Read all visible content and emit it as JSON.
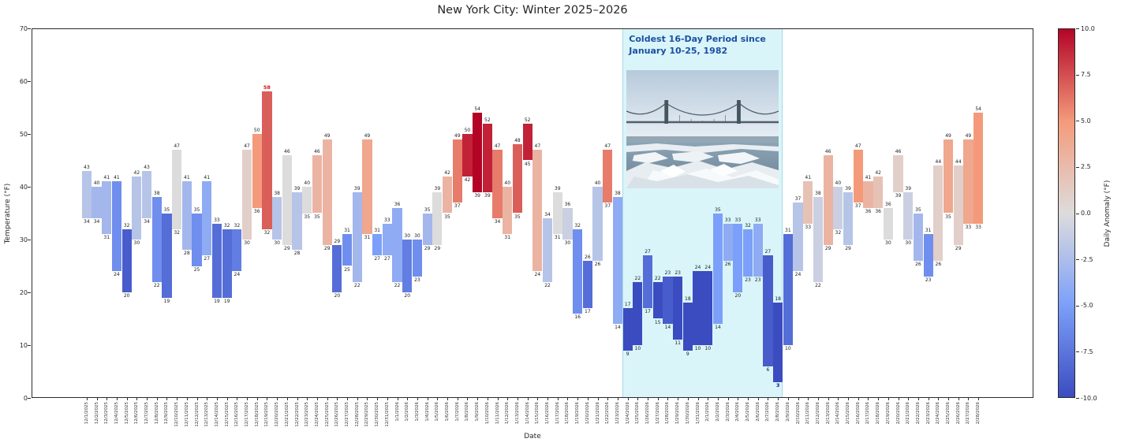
{
  "chart_data": {
    "type": "bar",
    "title": "New York City: Winter 2025–2026",
    "xlabel": "Date",
    "ylabel": "Temperature (°F)",
    "ylim": [
      0,
      70
    ],
    "yticks": [
      0,
      10,
      20,
      30,
      40,
      50,
      60,
      70
    ],
    "legend": "none",
    "grid": false,
    "dates": [
      "12/1/2025",
      "12/2/2025",
      "12/3/2025",
      "12/4/2025",
      "12/5/2025",
      "12/6/2025",
      "12/7/2025",
      "12/8/2025",
      "12/9/2025",
      "12/10/2025",
      "12/11/2025",
      "12/12/2025",
      "12/13/2025",
      "12/14/2025",
      "12/15/2025",
      "12/16/2025",
      "12/17/2025",
      "12/18/2025",
      "12/19/2025",
      "12/20/2025",
      "12/21/2025",
      "12/22/2025",
      "12/23/2025",
      "12/24/2025",
      "12/25/2025",
      "12/26/2025",
      "12/27/2025",
      "12/28/2025",
      "12/29/2025",
      "12/30/2025",
      "12/31/2025",
      "1/1/2026",
      "1/2/2026",
      "1/3/2026",
      "1/4/2026",
      "1/5/2026",
      "1/6/2026",
      "1/7/2026",
      "1/8/2026",
      "1/9/2026",
      "1/10/2026",
      "1/11/2026",
      "1/12/2026",
      "1/13/2026",
      "1/14/2026",
      "1/15/2026",
      "1/16/2026",
      "1/17/2026",
      "1/18/2026",
      "1/19/2026",
      "1/20/2026",
      "1/21/2026",
      "1/22/2026",
      "1/23/2026",
      "1/24/2026",
      "1/25/2026",
      "1/26/2026",
      "1/27/2026",
      "1/28/2026",
      "1/29/2026",
      "1/30/2026",
      "1/31/2026",
      "2/1/2026",
      "2/2/2026",
      "2/3/2026",
      "2/4/2026",
      "2/5/2026",
      "2/6/2026",
      "2/7/2026",
      "2/8/2026",
      "2/9/2026",
      "2/10/2026",
      "2/11/2026",
      "2/12/2026",
      "2/13/2026",
      "2/14/2026",
      "2/15/2026",
      "2/16/2026",
      "2/17/2026",
      "2/18/2026",
      "2/19/2026",
      "2/20/2026",
      "2/21/2026",
      "2/22/2026",
      "2/23/2026",
      "2/24/2026",
      "2/25/2026",
      "2/26/2026",
      "2/27/2026",
      "2/28/2026"
    ],
    "highs": [
      43,
      40,
      41,
      41,
      32,
      42,
      43,
      38,
      35,
      47,
      41,
      35,
      41,
      33,
      32,
      32,
      47,
      50,
      58,
      38,
      46,
      39,
      40,
      46,
      49,
      29,
      31,
      39,
      49,
      31,
      33,
      36,
      30,
      30,
      35,
      39,
      42,
      49,
      50,
      54,
      52,
      47,
      40,
      48,
      52,
      47,
      34,
      39,
      36,
      32,
      26,
      40,
      47,
      38,
      17,
      22,
      27,
      22,
      23,
      23,
      18,
      24,
      24,
      35,
      33,
      33,
      32,
      33,
      27,
      18,
      31,
      37,
      41,
      38,
      46,
      40,
      39,
      47,
      41,
      42,
      36,
      46,
      39,
      35,
      31,
      44,
      49,
      44,
      49,
      54
    ],
    "lows": [
      34,
      34,
      31,
      24,
      20,
      30,
      34,
      22,
      19,
      32,
      28,
      25,
      27,
      19,
      19,
      24,
      30,
      36,
      32,
      30,
      29,
      28,
      35,
      35,
      29,
      20,
      25,
      22,
      31,
      27,
      27,
      22,
      20,
      23,
      29,
      29,
      35,
      37,
      42,
      39,
      39,
      34,
      31,
      35,
      45,
      24,
      22,
      31,
      30,
      16,
      17,
      26,
      37,
      14,
      9,
      10,
      17,
      15,
      14,
      11,
      9,
      10,
      10,
      14,
      26,
      20,
      23,
      23,
      6,
      3,
      10,
      24,
      33,
      22,
      29,
      32,
      29,
      37,
      36,
      36,
      30,
      39,
      30,
      26,
      23,
      26,
      35,
      29,
      33,
      33
    ],
    "anomalies": [
      -2,
      -3,
      -3,
      -6,
      -9,
      -2,
      -2,
      -6,
      -8,
      0,
      -3,
      -6,
      -4,
      -8,
      -8,
      -7,
      1,
      5,
      7,
      -2,
      0,
      -2,
      0,
      3,
      3,
      -8,
      -6,
      -3,
      4,
      -5,
      -4,
      -4,
      -7,
      -6,
      -3,
      0,
      3,
      6,
      9,
      10,
      9,
      6,
      3,
      7,
      9,
      3,
      -2,
      0,
      -1,
      -6,
      -8,
      -2,
      6,
      -4,
      -10,
      -10,
      -8,
      -10,
      -9,
      -10,
      -10,
      -10,
      -10,
      -5,
      -4,
      -5,
      -5,
      -4,
      -9,
      -10,
      -8,
      -2,
      2,
      -1,
      3,
      -1,
      -2,
      5,
      3,
      2,
      0,
      1,
      -1,
      -3,
      -6,
      1,
      4,
      1,
      4,
      5
    ],
    "record_high": {
      "date": "12/19/2025",
      "value": 58
    },
    "record_low": {
      "date": "2/8/2026",
      "value": 3
    },
    "annotation": {
      "line1": "Coldest 16-Day Period since",
      "line2": "January 10-25, 1982",
      "start_date": "1/24/2026",
      "end_date": "2/8/2026",
      "highlight_color": "#d9f5fa",
      "text_color": "#1c4fa1"
    },
    "colorbar": {
      "label": "Daily Anomaly (°F)",
      "min": -10,
      "max": 10,
      "ticks": [
        10.0,
        7.5,
        5.0,
        2.5,
        0.0,
        -2.5,
        -5.0,
        -7.5,
        -10.0
      ],
      "color_low": "#3b4cc0",
      "color_mid": "#dddcdc",
      "color_high": "#b40426"
    },
    "photo": {
      "alt_name": "icy-river-with-suspension-bridge-photo"
    }
  }
}
